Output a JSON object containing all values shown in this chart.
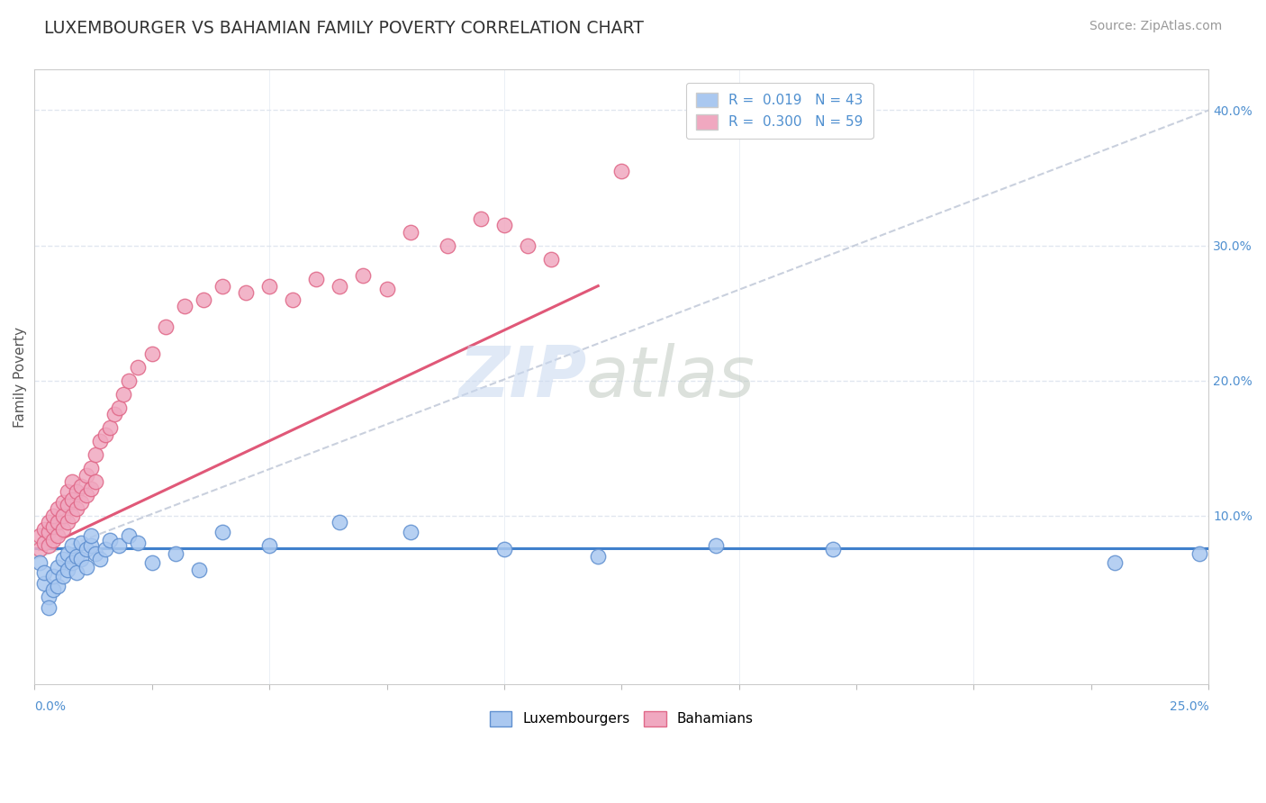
{
  "title": "LUXEMBOURGER VS BAHAMIAN FAMILY POVERTY CORRELATION CHART",
  "source": "Source: ZipAtlas.com",
  "ylabel": "Family Poverty",
  "xlim": [
    0.0,
    0.25
  ],
  "ylim": [
    -0.025,
    0.43
  ],
  "lux_color": "#aac8f0",
  "bah_color": "#f0a8c0",
  "lux_edge_color": "#6090d0",
  "bah_edge_color": "#e06888",
  "lux_line_color": "#4080cc",
  "bah_line_color": "#e05878",
  "dash_line_color": "#c0c8d8",
  "grid_color": "#dde4ee",
  "background_color": "#ffffff",
  "right_tick_color": "#5090d0",
  "lux_x": [
    0.001,
    0.002,
    0.002,
    0.003,
    0.003,
    0.004,
    0.004,
    0.005,
    0.005,
    0.006,
    0.006,
    0.007,
    0.007,
    0.008,
    0.008,
    0.009,
    0.009,
    0.01,
    0.01,
    0.011,
    0.011,
    0.012,
    0.012,
    0.013,
    0.014,
    0.015,
    0.016,
    0.018,
    0.02,
    0.022,
    0.025,
    0.03,
    0.035,
    0.04,
    0.05,
    0.065,
    0.08,
    0.1,
    0.12,
    0.145,
    0.17,
    0.23,
    0.248
  ],
  "lux_y": [
    0.065,
    0.05,
    0.058,
    0.04,
    0.032,
    0.045,
    0.055,
    0.048,
    0.062,
    0.068,
    0.055,
    0.072,
    0.06,
    0.078,
    0.065,
    0.07,
    0.058,
    0.08,
    0.068,
    0.075,
    0.062,
    0.078,
    0.085,
    0.072,
    0.068,
    0.075,
    0.082,
    0.078,
    0.085,
    0.08,
    0.065,
    0.072,
    0.06,
    0.088,
    0.078,
    0.095,
    0.088,
    0.075,
    0.07,
    0.078,
    0.075,
    0.065,
    0.072
  ],
  "bah_x": [
    0.001,
    0.001,
    0.002,
    0.002,
    0.003,
    0.003,
    0.003,
    0.004,
    0.004,
    0.004,
    0.005,
    0.005,
    0.005,
    0.006,
    0.006,
    0.006,
    0.007,
    0.007,
    0.007,
    0.008,
    0.008,
    0.008,
    0.009,
    0.009,
    0.01,
    0.01,
    0.011,
    0.011,
    0.012,
    0.012,
    0.013,
    0.013,
    0.014,
    0.015,
    0.016,
    0.017,
    0.018,
    0.019,
    0.02,
    0.022,
    0.025,
    0.028,
    0.032,
    0.036,
    0.04,
    0.045,
    0.05,
    0.055,
    0.06,
    0.065,
    0.07,
    0.075,
    0.08,
    0.088,
    0.095,
    0.1,
    0.105,
    0.11,
    0.125
  ],
  "bah_y": [
    0.075,
    0.085,
    0.08,
    0.09,
    0.078,
    0.088,
    0.095,
    0.082,
    0.092,
    0.1,
    0.085,
    0.095,
    0.105,
    0.09,
    0.1,
    0.11,
    0.095,
    0.108,
    0.118,
    0.1,
    0.112,
    0.125,
    0.105,
    0.118,
    0.11,
    0.122,
    0.115,
    0.13,
    0.12,
    0.135,
    0.125,
    0.145,
    0.155,
    0.16,
    0.165,
    0.175,
    0.18,
    0.19,
    0.2,
    0.21,
    0.22,
    0.24,
    0.255,
    0.26,
    0.27,
    0.265,
    0.27,
    0.26,
    0.275,
    0.27,
    0.278,
    0.268,
    0.31,
    0.3,
    0.32,
    0.315,
    0.3,
    0.29,
    0.355
  ],
  "lux_line_x0": 0.0,
  "lux_line_x1": 0.25,
  "lux_line_y0": 0.076,
  "lux_line_y1": 0.076,
  "bah_line_x0": 0.001,
  "bah_line_x1": 0.12,
  "bah_line_y0": 0.075,
  "bah_line_y1": 0.27,
  "dash_line_x0": 0.0,
  "dash_line_x1": 0.25,
  "dash_line_y0": 0.068,
  "dash_line_y1": 0.4
}
